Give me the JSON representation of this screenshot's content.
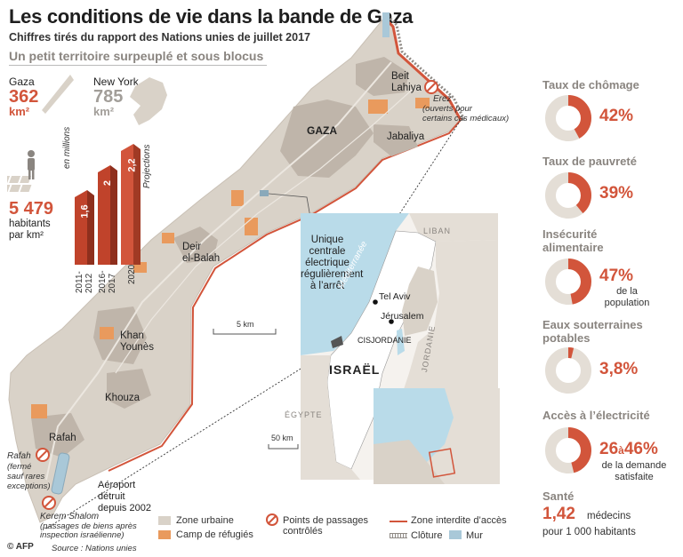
{
  "header": {
    "title": "Les conditions de vie dans la bande de Gaza",
    "subtitle": "Chiffres tirés du rapport des Nations unies de juillet 2017",
    "section": "Un petit territoire surpeuplé et sous blocus"
  },
  "comparison": {
    "gaza_label": "Gaza",
    "gaza_value": "362",
    "gaza_unit": "km²",
    "ny_label": "New York",
    "ny_value": "785",
    "ny_unit": "km²"
  },
  "density": {
    "value": "5 479",
    "line1": "habitants",
    "line2": "par km²"
  },
  "population_chart": {
    "unit": "en millions",
    "projection": "Projections",
    "bars": [
      {
        "value": "1,6",
        "label1": "2011-",
        "label2": "2012"
      },
      {
        "value": "2",
        "label1": "2016-",
        "label2": "2017"
      },
      {
        "value": "2,2",
        "label1": "2020",
        "label2": ""
      }
    ]
  },
  "map": {
    "places": {
      "beit_lahiya_1": "Beit",
      "beit_lahiya_2": "Lahiya",
      "gaza": "GAZA",
      "jabaliya": "Jabaliya",
      "deir_1": "Deir",
      "deir_2": "el-Balah",
      "khan_1": "Khan",
      "khan_2": "Younès",
      "khouza": "Khouza",
      "rafah": "Rafah"
    },
    "erez_name": "Erez",
    "erez_note_1": "(ouverts pour",
    "erez_note_2": "certains cas médicaux)",
    "power_plant": [
      "Unique",
      "centrale",
      "électrique",
      "régulièrement",
      "à l’arrêt"
    ],
    "scale": "5 km",
    "rafah_name": "Rafah",
    "rafah_note": [
      "(fermé",
      "sauf rares",
      "exceptions)"
    ],
    "airport": [
      "Aéroport",
      "détruit",
      "depuis 2002"
    ],
    "kerem_name": "Kerem Shalom",
    "kerem_note_1": "(passages de biens après",
    "kerem_note_2": "inspection israélienne)"
  },
  "inset": {
    "liban": "LIBAN",
    "mediterranee": "Méditerranée",
    "tel_aviv": "Tel Aviv",
    "jerusalem": "Jérusalem",
    "cisjordanie": "CISJORDANIE",
    "jordanie": "JORDANIE",
    "israel": "ISRAËL",
    "egypte": "ÉGYPTE",
    "scale": "50 km"
  },
  "stats": [
    {
      "label": "Taux de chômage",
      "value": "42%",
      "fraction": 0.42
    },
    {
      "label": "Taux de pauvreté",
      "value": "39%",
      "fraction": 0.39
    },
    {
      "label_1": "Insécurité",
      "label_2": "alimentaire",
      "value": "47%",
      "fraction": 0.47,
      "sub_1": "de la",
      "sub_2": "population"
    },
    {
      "label_1": "Eaux souterraines",
      "label_2": "potables",
      "value": "3,8%",
      "fraction": 0.038
    },
    {
      "label": "Accès à l’électricité",
      "value_a": "26",
      "value_mid": "à",
      "value_b": "46%",
      "fraction": 0.46,
      "sub_1": "de la demande",
      "sub_2": "satisfaite"
    }
  ],
  "health": {
    "label": "Santé",
    "value": "1,42",
    "text_1": "médecins",
    "text_2": "pour 1 000 habitants"
  },
  "legend": {
    "urban": "Zone urbaine",
    "camps": "Camp de réfugiés",
    "crossings_1": "Points de passages",
    "crossings_2": "contrôlés",
    "forbidden": "Zone interdite d’accès",
    "fence": "Clôture",
    "wall": "Mur"
  },
  "footer": {
    "credit": "© AFP",
    "source": "Source : Nations unies"
  },
  "colors": {
    "red": "#d2553b",
    "territory": "#d9d2c8",
    "urban": "#bfb5aa",
    "camp": "#e99a5d",
    "sea": "#b9dbe9",
    "ring_bg": "#e4ded6",
    "grey_text": "#8a8580"
  }
}
